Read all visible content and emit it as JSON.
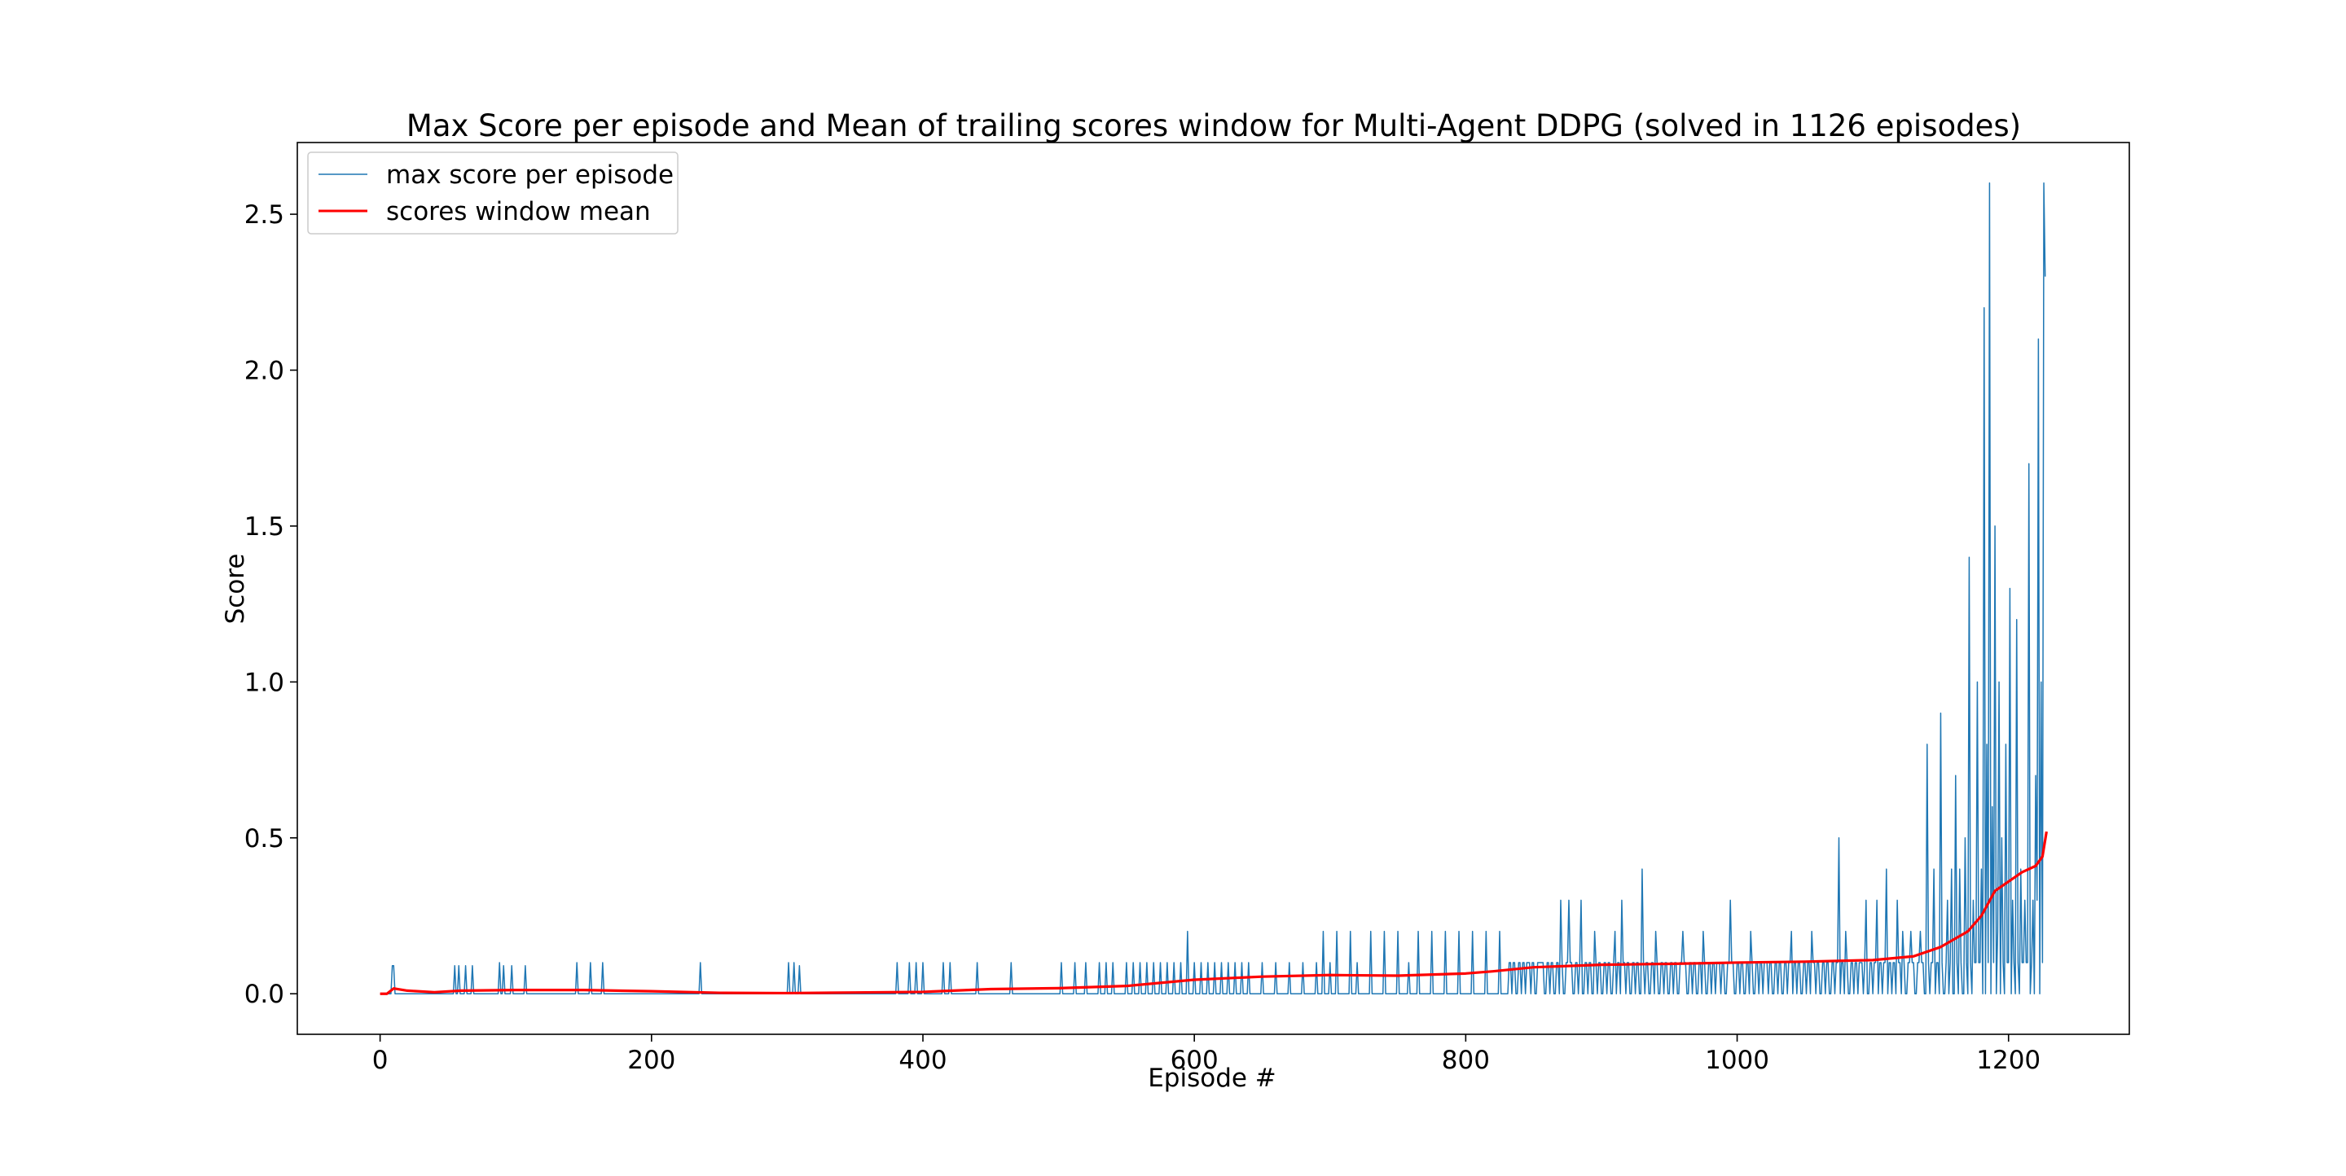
{
  "figure": {
    "background": "#ffffff"
  },
  "chart_data": {
    "type": "line",
    "title": "Max Score per episode and Mean of trailing scores window for Multi-Agent DDPG (solved in 1126 episodes)",
    "xlabel": "Episode #",
    "ylabel": "Score",
    "xlim": [
      -61,
      1289
    ],
    "ylim": [
      -0.13,
      2.73
    ],
    "xticks": [
      0,
      200,
      400,
      600,
      800,
      1000,
      1200
    ],
    "xtick_labels": [
      "0",
      "200",
      "400",
      "600",
      "800",
      "1000",
      "1200"
    ],
    "yticks": [
      0.0,
      0.5,
      1.0,
      1.5,
      2.0,
      2.5
    ],
    "ytick_labels": [
      "0.0",
      "0.5",
      "1.0",
      "1.5",
      "2.0",
      "2.5"
    ],
    "grid": false,
    "legend_position": "upper-left",
    "series": [
      {
        "name": "max score per episode",
        "color": "#1f77b4",
        "style": "thin",
        "spikes": [
          [
            9,
            0.09
          ],
          [
            10,
            0.09
          ],
          [
            55,
            0.09
          ],
          [
            58,
            0.09
          ],
          [
            63,
            0.09
          ],
          [
            68,
            0.09
          ],
          [
            88,
            0.1
          ],
          [
            91,
            0.09
          ],
          [
            97,
            0.09
          ],
          [
            107,
            0.09
          ],
          [
            145,
            0.1
          ],
          [
            155,
            0.1
          ],
          [
            164,
            0.1
          ],
          [
            236,
            0.1
          ],
          [
            301,
            0.1
          ],
          [
            305,
            0.1
          ],
          [
            309,
            0.09
          ],
          [
            381,
            0.1
          ],
          [
            390,
            0.1
          ],
          [
            395,
            0.1
          ],
          [
            400,
            0.1
          ],
          [
            415,
            0.1
          ],
          [
            420,
            0.1
          ],
          [
            440,
            0.1
          ],
          [
            465,
            0.1
          ],
          [
            502,
            0.1
          ],
          [
            512,
            0.1
          ],
          [
            520,
            0.1
          ],
          [
            530,
            0.1
          ],
          [
            535,
            0.1
          ],
          [
            540,
            0.1
          ],
          [
            550,
            0.1
          ],
          [
            555,
            0.1
          ],
          [
            560,
            0.1
          ],
          [
            565,
            0.1
          ],
          [
            570,
            0.1
          ],
          [
            575,
            0.1
          ],
          [
            580,
            0.1
          ],
          [
            585,
            0.1
          ],
          [
            590,
            0.1
          ],
          [
            595,
            0.2
          ],
          [
            600,
            0.1
          ],
          [
            605,
            0.1
          ],
          [
            610,
            0.1
          ],
          [
            615,
            0.1
          ],
          [
            620,
            0.1
          ],
          [
            625,
            0.1
          ],
          [
            630,
            0.1
          ],
          [
            635,
            0.1
          ],
          [
            640,
            0.1
          ],
          [
            650,
            0.1
          ],
          [
            660,
            0.1
          ],
          [
            670,
            0.1
          ],
          [
            680,
            0.1
          ],
          [
            690,
            0.1
          ],
          [
            695,
            0.2
          ],
          [
            700,
            0.1
          ],
          [
            705,
            0.2
          ],
          [
            715,
            0.2
          ],
          [
            720,
            0.1
          ],
          [
            730,
            0.2
          ],
          [
            740,
            0.2
          ],
          [
            750,
            0.2
          ],
          [
            758,
            0.1
          ],
          [
            765,
            0.2
          ],
          [
            775,
            0.2
          ],
          [
            785,
            0.2
          ],
          [
            795,
            0.2
          ],
          [
            805,
            0.2
          ],
          [
            815,
            0.2
          ],
          [
            825,
            0.2
          ],
          [
            835,
            0.1
          ],
          [
            845,
            0.1
          ],
          [
            855,
            0.1
          ],
          [
            870,
            0.3
          ],
          [
            876,
            0.3
          ],
          [
            885,
            0.3
          ],
          [
            895,
            0.2
          ],
          [
            910,
            0.2
          ],
          [
            915,
            0.3
          ],
          [
            930,
            0.4
          ],
          [
            940,
            0.2
          ],
          [
            960,
            0.2
          ],
          [
            975,
            0.2
          ],
          [
            985,
            0.1
          ],
          [
            995,
            0.3
          ],
          [
            1010,
            0.2
          ],
          [
            1020,
            0.1
          ],
          [
            1040,
            0.2
          ],
          [
            1055,
            0.2
          ],
          [
            1070,
            0.1
          ],
          [
            1075,
            0.5
          ],
          [
            1080,
            0.2
          ],
          [
            1090,
            0.1
          ],
          [
            1095,
            0.3
          ],
          [
            1103,
            0.3
          ],
          [
            1110,
            0.4
          ],
          [
            1118,
            0.3
          ],
          [
            1122,
            0.2
          ],
          [
            1128,
            0.2
          ],
          [
            1135,
            0.2
          ],
          [
            1140,
            0.8
          ],
          [
            1145,
            0.4
          ],
          [
            1150,
            0.9
          ],
          [
            1155,
            0.3
          ],
          [
            1158,
            0.4
          ],
          [
            1161,
            0.7
          ],
          [
            1164,
            0.4
          ],
          [
            1168,
            0.5
          ],
          [
            1171,
            1.4
          ],
          [
            1174,
            0.3
          ],
          [
            1177,
            1.0
          ],
          [
            1180,
            0.4
          ],
          [
            1182,
            2.2
          ],
          [
            1184,
            0.8
          ],
          [
            1186,
            2.6
          ],
          [
            1188,
            0.6
          ],
          [
            1190,
            1.5
          ],
          [
            1193,
            1.0
          ],
          [
            1195,
            0.5
          ],
          [
            1198,
            0.8
          ],
          [
            1201,
            1.3
          ],
          [
            1203,
            0.3
          ],
          [
            1206,
            1.2
          ],
          [
            1209,
            0.4
          ],
          [
            1212,
            0.3
          ],
          [
            1215,
            1.7
          ],
          [
            1218,
            0.3
          ],
          [
            1220,
            0.7
          ],
          [
            1222,
            2.1
          ],
          [
            1224,
            1.0
          ],
          [
            1226,
            2.6
          ],
          [
            1227,
            2.3
          ]
        ],
        "dips": [
          [
            1170,
            -0.0
          ],
          [
            1176,
            0.1
          ],
          [
            1183,
            0.0
          ],
          [
            1192,
            0.2
          ],
          [
            1197,
            0.0
          ],
          [
            1204,
            0.1
          ],
          [
            1211,
            0.1
          ],
          [
            1217,
            0.1
          ],
          [
            1221,
            0.3
          ]
        ]
      },
      {
        "name": "scores window mean",
        "color": "#ff0000",
        "style": "thick",
        "x": [
          0,
          5,
          10,
          20,
          40,
          60,
          100,
          150,
          200,
          250,
          300,
          350,
          400,
          450,
          500,
          550,
          600,
          650,
          700,
          750,
          800,
          820,
          850,
          900,
          950,
          1000,
          1050,
          1100,
          1130,
          1150,
          1170,
          1180,
          1190,
          1200,
          1210,
          1220,
          1225,
          1228
        ],
        "values": [
          0.0,
          0.0,
          0.017,
          0.01,
          0.005,
          0.01,
          0.012,
          0.012,
          0.008,
          0.003,
          0.002,
          0.004,
          0.006,
          0.015,
          0.018,
          0.025,
          0.045,
          0.055,
          0.06,
          0.058,
          0.065,
          0.072,
          0.085,
          0.093,
          0.096,
          0.1,
          0.103,
          0.108,
          0.12,
          0.15,
          0.2,
          0.25,
          0.33,
          0.36,
          0.39,
          0.41,
          0.44,
          0.52
        ]
      }
    ]
  }
}
